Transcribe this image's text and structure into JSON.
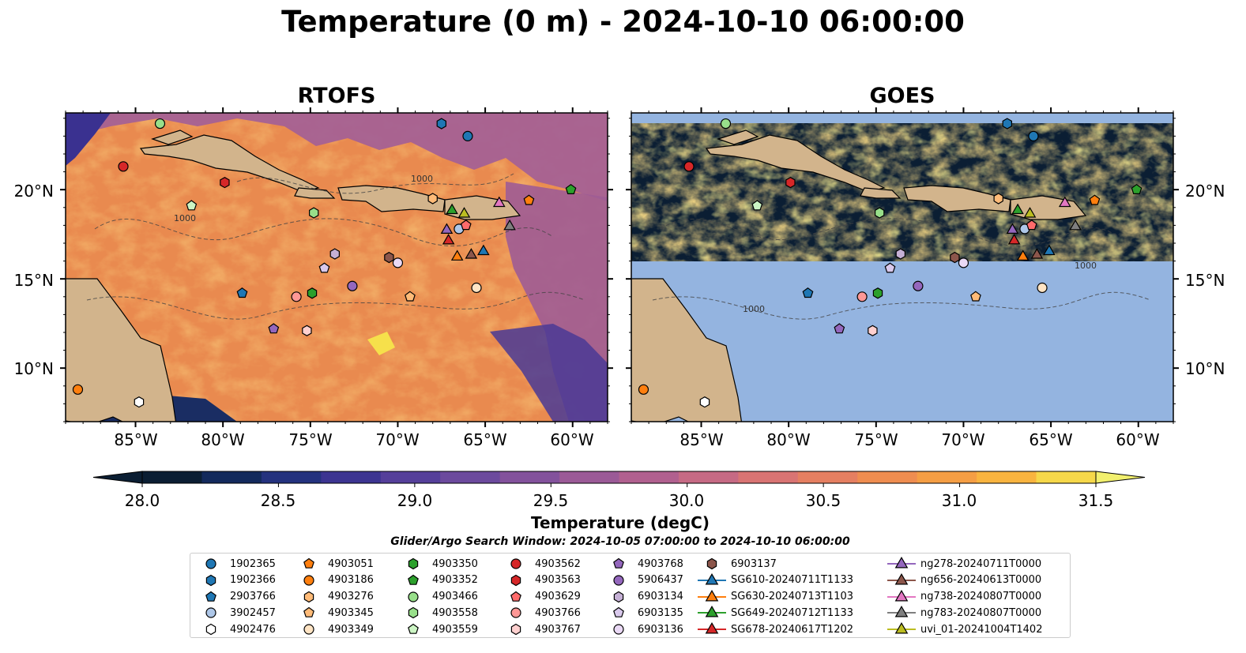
{
  "figure": {
    "title": "Temperature (0 m) - 2024-10-10 06:00:00",
    "panels": [
      {
        "title": "RTOFS",
        "field": "model"
      },
      {
        "title": "GOES",
        "field": "satellite"
      }
    ],
    "lon_ticks": [
      "85°W",
      "80°W",
      "75°W",
      "70°W",
      "65°W",
      "60°W"
    ],
    "lat_ticks": [
      "20°N",
      "15°N",
      "10°N"
    ],
    "colors": {
      "land": "#d2b48c",
      "no_data": "#94b4e0",
      "river": "#a3bcd8"
    }
  },
  "colorbar": {
    "label": "Temperature (degC)",
    "min": 28.0,
    "max": 31.5,
    "step": 0.25,
    "tick_labels": [
      "28.0",
      "28.5",
      "29.0",
      "29.5",
      "30.0",
      "30.5",
      "31.0",
      "31.5"
    ],
    "colors": [
      "#0b1e33",
      "#132a5c",
      "#24327e",
      "#3c3491",
      "#553f9a",
      "#6c4a9d",
      "#83529c",
      "#9b5a97",
      "#b1608f",
      "#c66a84",
      "#d97473",
      "#e57f61",
      "#ef8d50",
      "#f59e44",
      "#f9b43f",
      "#f6d84a"
    ],
    "over_color": "#f2f06e",
    "under_color": "#0b1e33"
  },
  "search_window": "Glider/Argo Search Window: 2024-10-05 07:00:00 to 2024-10-10 06:00:00",
  "contours": {
    "isobath_label": "1000"
  },
  "legend": {
    "columns": [
      [
        {
          "label": "1902365",
          "marker": "circle",
          "color": "#1f77b4"
        },
        {
          "label": "1902366",
          "marker": "hexagon",
          "color": "#1f77b4"
        },
        {
          "label": "2903766",
          "marker": "pentagon",
          "color": "#1f77b4"
        },
        {
          "label": "3902457",
          "marker": "circle",
          "color": "#aec7e8"
        },
        {
          "label": "4902476",
          "marker": "hexagon",
          "color": "#ffffff"
        }
      ],
      [
        {
          "label": "4903051",
          "marker": "pentagon",
          "color": "#ff7f0e"
        },
        {
          "label": "4903186",
          "marker": "circle",
          "color": "#ff7f0e"
        },
        {
          "label": "4903276",
          "marker": "hexagon",
          "color": "#ffbb78"
        },
        {
          "label": "4903345",
          "marker": "pentagon",
          "color": "#ffbb78"
        },
        {
          "label": "4903349",
          "marker": "circle",
          "color": "#ffe4c4"
        }
      ],
      [
        {
          "label": "4903350",
          "marker": "hexagon",
          "color": "#2ca02c"
        },
        {
          "label": "4903352",
          "marker": "pentagon",
          "color": "#2ca02c"
        },
        {
          "label": "4903466",
          "marker": "circle",
          "color": "#98df8a"
        },
        {
          "label": "4903558",
          "marker": "hexagon",
          "color": "#98df8a"
        },
        {
          "label": "4903559",
          "marker": "pentagon",
          "color": "#ccf5c4"
        }
      ],
      [
        {
          "label": "4903562",
          "marker": "circle",
          "color": "#d62728"
        },
        {
          "label": "4903563",
          "marker": "hexagon",
          "color": "#d62728"
        },
        {
          "label": "4903629",
          "marker": "pentagon",
          "color": "#ff6b6b"
        },
        {
          "label": "4903766",
          "marker": "circle",
          "color": "#ff9896"
        },
        {
          "label": "4903767",
          "marker": "hexagon",
          "color": "#ffd0cf"
        }
      ],
      [
        {
          "label": "4903768",
          "marker": "pentagon",
          "color": "#9467bd"
        },
        {
          "label": "5906437",
          "marker": "circle",
          "color": "#9467bd"
        },
        {
          "label": "6903134",
          "marker": "hexagon",
          "color": "#c5b0d5"
        },
        {
          "label": "6903135",
          "marker": "pentagon",
          "color": "#d9c9ec"
        },
        {
          "label": "6903136",
          "marker": "circle",
          "color": "#ead9f5"
        }
      ],
      [
        {
          "label": "6903137",
          "marker": "hexagon",
          "color": "#8c564b"
        },
        {
          "label": "SG610-20240711T1133",
          "marker": "triangle",
          "color": "#1f77b4"
        },
        {
          "label": "SG630-20240713T1103",
          "marker": "triangle",
          "color": "#ff7f0e"
        },
        {
          "label": "SG649-20240712T1133",
          "marker": "triangle",
          "color": "#2ca02c"
        },
        {
          "label": "SG678-20240617T1202",
          "marker": "triangle",
          "color": "#d62728"
        }
      ],
      [
        {
          "label": "ng278-20240711T0000",
          "marker": "triangle",
          "color": "#9467bd"
        },
        {
          "label": "ng656-20240613T0000",
          "marker": "triangle",
          "color": "#8c564b"
        },
        {
          "label": "ng738-20240807T0000",
          "marker": "triangle",
          "color": "#e377c2"
        },
        {
          "label": "ng783-20240807T0000",
          "marker": "triangle",
          "color": "#7f7f7f"
        },
        {
          "label": "uvi_01-20241004T1402",
          "marker": "triangle",
          "color": "#bcbd22"
        }
      ]
    ]
  },
  "chart_data": {
    "type": "scatter",
    "title": "Temperature (0 m) - 2024-10-10 06:00:00",
    "xlim": [
      -89.0,
      -58.0
    ],
    "ylim": [
      7.0,
      24.3
    ],
    "series": [
      {
        "name": "1902365",
        "marker": "circle",
        "color": "#1f77b4",
        "x": [
          -66.0
        ],
        "y": [
          23.0
        ]
      },
      {
        "name": "1902366",
        "marker": "hexagon",
        "color": "#1f77b4",
        "x": [
          -67.5
        ],
        "y": [
          23.7
        ]
      },
      {
        "name": "2903766",
        "marker": "pentagon",
        "color": "#1f77b4",
        "x": [
          -78.9
        ],
        "y": [
          14.2
        ]
      },
      {
        "name": "3902457",
        "marker": "circle",
        "color": "#aec7e8",
        "x": [
          -66.5
        ],
        "y": [
          17.8
        ]
      },
      {
        "name": "4902476",
        "marker": "hexagon",
        "color": "#ffffff",
        "x": [
          -84.8
        ],
        "y": [
          8.1
        ]
      },
      {
        "name": "4903051",
        "marker": "pentagon",
        "color": "#ff7f0e",
        "x": [
          -62.5
        ],
        "y": [
          19.4
        ]
      },
      {
        "name": "4903186",
        "marker": "circle",
        "color": "#ff7f0e",
        "x": [
          -88.3
        ],
        "y": [
          8.8
        ]
      },
      {
        "name": "4903276",
        "marker": "hexagon",
        "color": "#ffbb78",
        "x": [
          -68.0
        ],
        "y": [
          19.5
        ]
      },
      {
        "name": "4903345",
        "marker": "pentagon",
        "color": "#ffbb78",
        "x": [
          -69.3
        ],
        "y": [
          14.0
        ]
      },
      {
        "name": "4903349",
        "marker": "circle",
        "color": "#ffe4c4",
        "x": [
          -65.5
        ],
        "y": [
          14.5
        ]
      },
      {
        "name": "4903350",
        "marker": "hexagon",
        "color": "#2ca02c",
        "x": [
          -74.9
        ],
        "y": [
          14.2
        ]
      },
      {
        "name": "4903352",
        "marker": "pentagon",
        "color": "#2ca02c",
        "x": [
          -60.1
        ],
        "y": [
          20.0
        ]
      },
      {
        "name": "4903466",
        "marker": "circle",
        "color": "#98df8a",
        "x": [
          -83.6
        ],
        "y": [
          23.7
        ]
      },
      {
        "name": "4903558",
        "marker": "hexagon",
        "color": "#98df8a",
        "x": [
          -74.8
        ],
        "y": [
          18.7
        ]
      },
      {
        "name": "4903559",
        "marker": "pentagon",
        "color": "#ccf5c4",
        "x": [
          -81.8
        ],
        "y": [
          19.1
        ]
      },
      {
        "name": "4903562",
        "marker": "circle",
        "color": "#d62728",
        "x": [
          -85.7
        ],
        "y": [
          21.3
        ]
      },
      {
        "name": "4903563",
        "marker": "hexagon",
        "color": "#d62728",
        "x": [
          -79.9
        ],
        "y": [
          20.4
        ]
      },
      {
        "name": "4903629",
        "marker": "pentagon",
        "color": "#ff6b6b",
        "x": [
          -66.1
        ],
        "y": [
          18.0
        ]
      },
      {
        "name": "4903766",
        "marker": "circle",
        "color": "#ff9896",
        "x": [
          -75.8
        ],
        "y": [
          14.0
        ]
      },
      {
        "name": "4903767",
        "marker": "hexagon",
        "color": "#ffd0cf",
        "x": [
          -75.2
        ],
        "y": [
          12.1
        ]
      },
      {
        "name": "4903768",
        "marker": "pentagon",
        "color": "#9467bd",
        "x": [
          -77.1
        ],
        "y": [
          12.2
        ]
      },
      {
        "name": "5906437",
        "marker": "circle",
        "color": "#9467bd",
        "x": [
          -72.6
        ],
        "y": [
          14.6
        ]
      },
      {
        "name": "6903134",
        "marker": "hexagon",
        "color": "#c5b0d5",
        "x": [
          -73.6
        ],
        "y": [
          16.4
        ]
      },
      {
        "name": "6903135",
        "marker": "pentagon",
        "color": "#d9c9ec",
        "x": [
          -74.2
        ],
        "y": [
          15.6
        ]
      },
      {
        "name": "6903136",
        "marker": "circle",
        "color": "#ead9f5",
        "x": [
          -70.0
        ],
        "y": [
          15.9
        ]
      },
      {
        "name": "6903137",
        "marker": "hexagon",
        "color": "#8c564b",
        "x": [
          -70.5
        ],
        "y": [
          16.2
        ]
      },
      {
        "name": "SG610-20240711T1133",
        "marker": "triangle",
        "color": "#1f77b4",
        "x": [
          -65.1
        ],
        "y": [
          16.6
        ]
      },
      {
        "name": "SG630-20240713T1103",
        "marker": "triangle",
        "color": "#ff7f0e",
        "x": [
          -66.6
        ],
        "y": [
          16.3
        ]
      },
      {
        "name": "SG649-20240712T1133",
        "marker": "triangle",
        "color": "#2ca02c",
        "x": [
          -66.9
        ],
        "y": [
          18.9
        ]
      },
      {
        "name": "SG678-20240617T1202",
        "marker": "triangle",
        "color": "#d62728",
        "x": [
          -67.1
        ],
        "y": [
          17.2
        ]
      },
      {
        "name": "ng278-20240711T0000",
        "marker": "triangle",
        "color": "#9467bd",
        "x": [
          -67.2
        ],
        "y": [
          17.8
        ]
      },
      {
        "name": "ng656-20240613T0000",
        "marker": "triangle",
        "color": "#8c564b",
        "x": [
          -65.8
        ],
        "y": [
          16.4
        ]
      },
      {
        "name": "ng738-20240807T0000",
        "marker": "triangle",
        "color": "#e377c2",
        "x": [
          -64.2
        ],
        "y": [
          19.3
        ]
      },
      {
        "name": "ng783-20240807T0000",
        "marker": "triangle",
        "color": "#7f7f7f",
        "x": [
          -63.6
        ],
        "y": [
          18.0
        ]
      },
      {
        "name": "uvi_01-20241004T1402",
        "marker": "triangle",
        "color": "#bcbd22",
        "x": [
          -66.2
        ],
        "y": [
          18.7
        ]
      }
    ]
  }
}
